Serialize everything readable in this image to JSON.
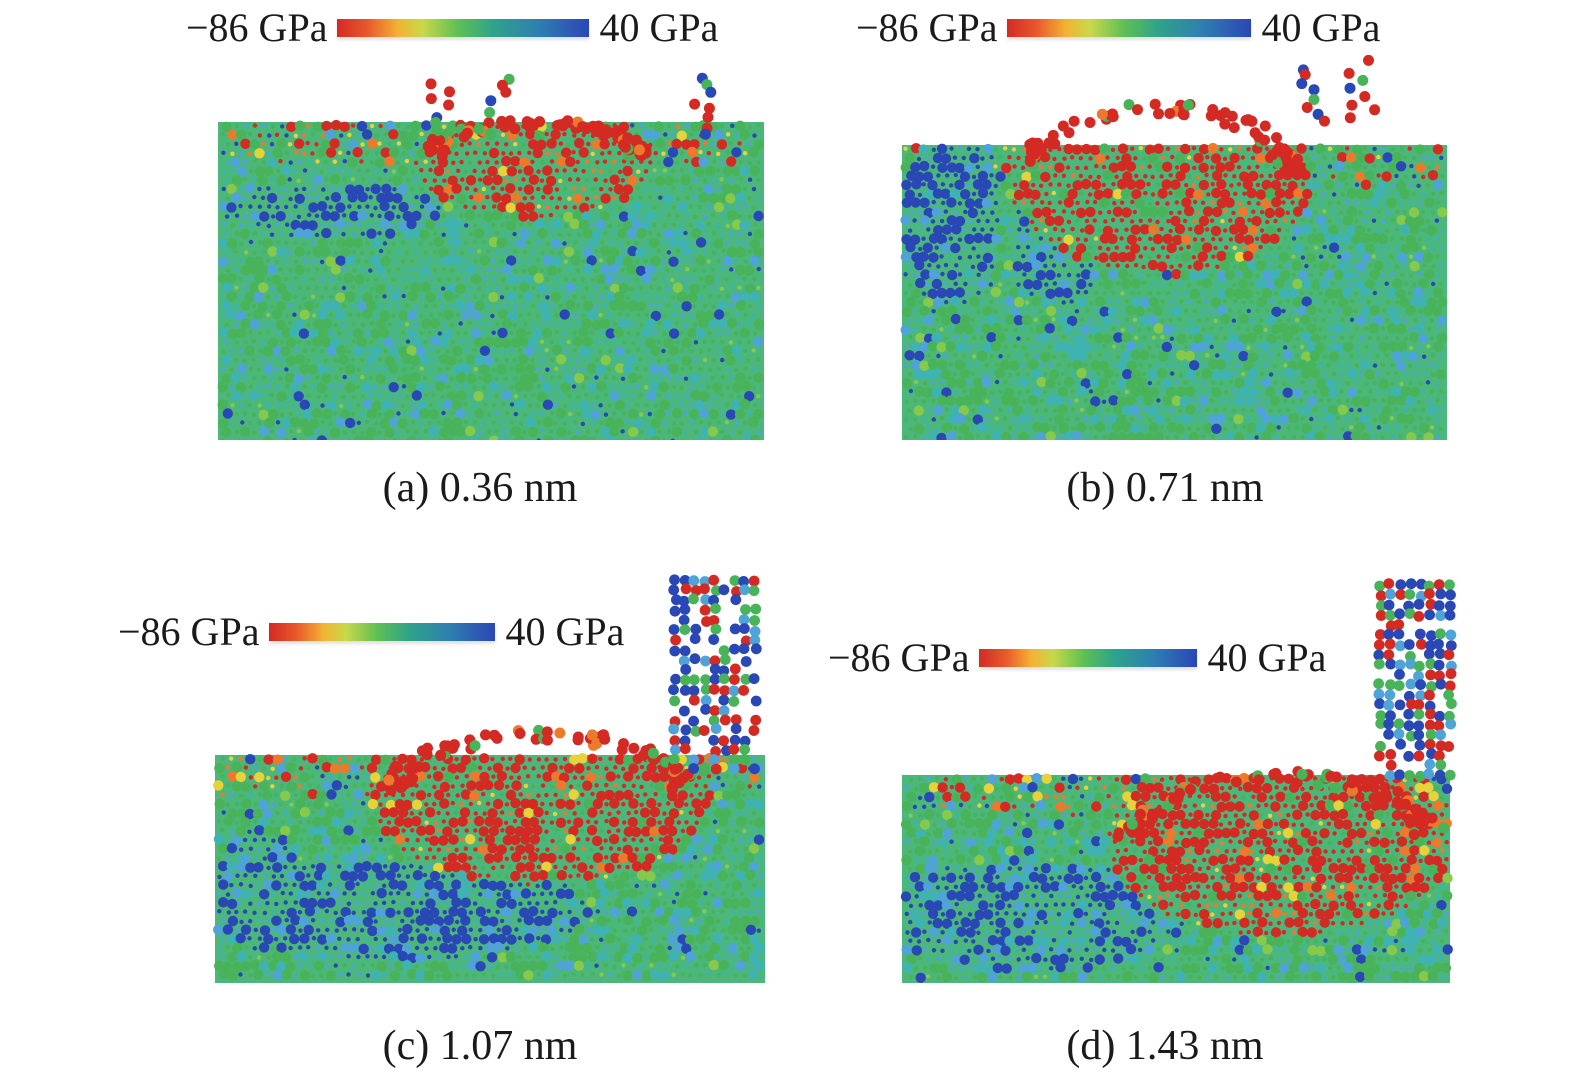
{
  "figure": {
    "colorbar": {
      "min_label": "−86 GPa",
      "max_label": "40 GPa",
      "stops": [
        "#d42a24",
        "#e8582b",
        "#f2b233",
        "#c9d84a",
        "#5fbf55",
        "#2fa38a",
        "#2f7fb0",
        "#2b46b5"
      ]
    },
    "atom_colors": {
      "compressive_red": "#d42a24",
      "orange": "#ec7a2c",
      "yellow": "#e8d23a",
      "light_green": "#86c94b",
      "green": "#49b35a",
      "cyan": "#3fb2b4",
      "light_blue": "#4fa3d6",
      "deep_blue": "#2a47b6"
    },
    "panels": [
      {
        "id": "a",
        "caption": "(a) 0.36 nm",
        "depth_nm": 0.36
      },
      {
        "id": "b",
        "caption": "(b) 0.71 nm",
        "depth_nm": 0.71
      },
      {
        "id": "c",
        "caption": "(c) 1.07 nm",
        "depth_nm": 1.07
      },
      {
        "id": "d",
        "caption": "(d) 1.43 nm",
        "depth_nm": 1.43
      }
    ]
  }
}
